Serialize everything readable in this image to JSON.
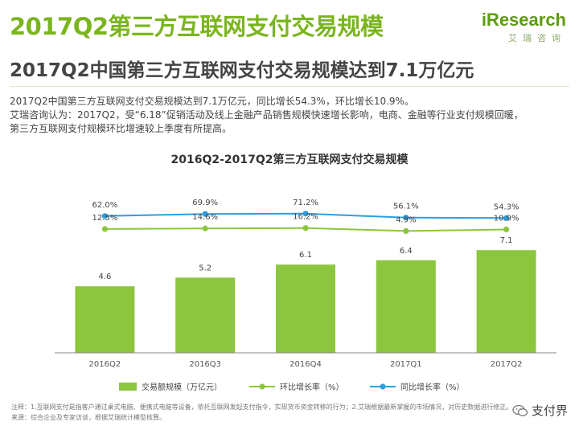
{
  "header": {
    "title": "2017Q2第三方互联网支付交易规模",
    "subtitle": "2017Q2中国第三方互联网支付交易规模达到7.1万亿元",
    "desc_line1": "2017Q2中国第三方互联网支付交易规模达到7.1万亿元，同比增长54.3%，环比增长10.9%。",
    "desc_line2": "艾瑞咨询认为：2017Q2，受“6.18”促销活动及线上金融产品销售规模快速增长影响，电商、金融等行业支付规模回暖，",
    "desc_line3": "第三方互联网支付规模环比增速较上季度有所提高。"
  },
  "logo": {
    "main": "iResearch",
    "sub": "艾瑞咨询"
  },
  "colors": {
    "accent": "#7ab51d",
    "bar": "#8cc63f",
    "yoy_line": "#2c9ee0",
    "qoq_line": "#8cc63f"
  },
  "chart_data": {
    "type": "bar",
    "title": "2016Q2-2017Q2第三方互联网支付交易规模",
    "categories": [
      "2016Q2",
      "2016Q3",
      "2016Q4",
      "2017Q1",
      "2017Q2"
    ],
    "series": [
      {
        "name": "交易额规模（万亿元）",
        "type": "bar",
        "values": [
          4.6,
          5.2,
          6.1,
          6.4,
          7.1
        ],
        "labels": [
          "4.6",
          "5.2",
          "6.1",
          "6.4",
          "7.1"
        ]
      },
      {
        "name": "环比增长率（%）",
        "type": "line",
        "values": [
          12.5,
          14.6,
          16.2,
          4.9,
          10.9
        ],
        "labels": [
          "12.5%",
          "14.6%",
          "16.2%",
          "4.9%",
          "10.9%"
        ]
      },
      {
        "name": "同比增长率（%）",
        "type": "line",
        "values": [
          62.0,
          69.9,
          71.2,
          56.1,
          54.3
        ],
        "labels": [
          "62.0%",
          "69.9%",
          "71.2%",
          "56.1%",
          "54.3%"
        ]
      }
    ],
    "xlabel": "",
    "ylabel": "",
    "legend_position": "bottom",
    "grid": false
  },
  "footnote": {
    "line1": "注释：1.互联网支付是指客户通过桌式电脑、便携式电脑等设备，依托互联网发起支付指令，实现货币资金转移的行为；2.艾瑞根据最新掌握的市场情况，对历史数据进行修正。",
    "line2": "来源：综合企业及专家访谈，根据艾瑞统计模型核算。"
  },
  "watermark": {
    "icon": "wechat-icon",
    "text": "支付界"
  }
}
